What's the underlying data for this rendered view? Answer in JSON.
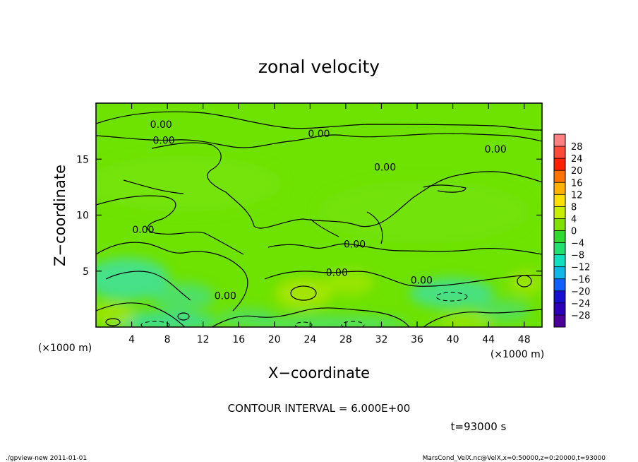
{
  "chart_data": {
    "type": "heatmap",
    "title": "zonal velocity",
    "xlabel": "X−coordinate",
    "ylabel": "Z−coordinate",
    "x_unit": "(×1000 m)",
    "y_unit": "(×1000 m)",
    "x_ticks": [
      4,
      8,
      12,
      16,
      20,
      24,
      28,
      32,
      36,
      40,
      44,
      48
    ],
    "y_ticks": [
      5,
      10,
      15
    ],
    "xlim": [
      0,
      50
    ],
    "ylim": [
      0,
      20
    ],
    "colorbar": {
      "levels": [
        28,
        24,
        20,
        16,
        12,
        8,
        4,
        0,
        -4,
        -8,
        -12,
        -16,
        -20,
        -24,
        -28
      ],
      "labels": [
        "28",
        "24",
        "20",
        "16",
        "12",
        "8",
        "4",
        "0",
        "−4",
        "−8",
        "−12",
        "−16",
        "−20",
        "−24",
        "−28"
      ],
      "colors": [
        "#ff8080",
        "#ff4a3a",
        "#ff2000",
        "#ff7400",
        "#ffb200",
        "#ffe000",
        "#c8ee00",
        "#80e000",
        "#30d830",
        "#20e070",
        "#10e0c0",
        "#10b8e8",
        "#1060ff",
        "#1810d0",
        "#2c00b8",
        "#4a0098"
      ]
    },
    "contour_labels": [
      {
        "x": 7.3,
        "z": 18.1,
        "text": "0.00"
      },
      {
        "x": 7.6,
        "z": 16.7,
        "text": "0.00"
      },
      {
        "x": 25.0,
        "z": 17.3,
        "text": "0.00"
      },
      {
        "x": 44.8,
        "z": 15.9,
        "text": "0.00"
      },
      {
        "x": 32.4,
        "z": 14.3,
        "text": "0.00"
      },
      {
        "x": 5.3,
        "z": 8.7,
        "text": "0.00"
      },
      {
        "x": 29.0,
        "z": 7.4,
        "text": "0.00"
      },
      {
        "x": 27.0,
        "z": 4.9,
        "text": "0.00"
      },
      {
        "x": 36.5,
        "z": 4.2,
        "text": "0.00"
      },
      {
        "x": 14.5,
        "z": 2.8,
        "text": "0.00"
      }
    ],
    "contour_interval": "CONTOUR INTERVAL = 6.000E+00",
    "time": "t=93000 s"
  },
  "footer": {
    "left": "./gpview-new   2011-01-01",
    "right": "MarsCond_VelX.nc@VelX,x=0:50000,z=0:20000,t=93000"
  },
  "colors": {
    "field_base": "#6ee200",
    "light_green": "#7eea10",
    "teal": "#3ee0a0",
    "yellow_green": "#a8e600"
  }
}
